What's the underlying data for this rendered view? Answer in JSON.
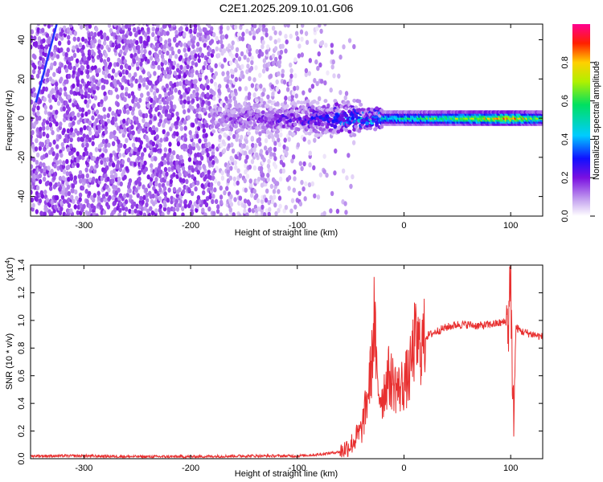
{
  "title": "C2E1.2025.209.10.01.G06",
  "chart_data": [
    {
      "type": "heatmap",
      "xlabel": "Height of straight line (km)",
      "ylabel": "Frequency (Hz)",
      "xlim": [
        -350,
        130
      ],
      "ylim": [
        -50,
        48
      ],
      "x_ticks": [
        -300,
        -200,
        -100,
        0,
        100
      ],
      "y_ticks": [
        -40,
        -20,
        0,
        20,
        40
      ],
      "colorbar": {
        "label": "Normalized spectral amplitude",
        "range": [
          0,
          1
        ],
        "ticks": [
          0.0,
          0.2,
          0.4,
          0.6,
          0.8
        ],
        "colormap": "rainbow (purple-blue-cyan-green-yellow-red-magenta)"
      },
      "features": [
        {
          "name": "noise",
          "x_range": [
            -350,
            -40
          ],
          "y_range": [
            -50,
            48
          ],
          "amplitude": [
            0.02,
            0.15
          ]
        },
        {
          "name": "signal-ridge",
          "x_range": [
            -180,
            130
          ],
          "frequency": 0,
          "amplitude_at_x": [
            [
              -180,
              0.15
            ],
            [
              -100,
              0.25
            ],
            [
              -50,
              0.4
            ],
            [
              0,
              0.55
            ],
            [
              50,
              0.7
            ],
            [
              100,
              0.9
            ],
            [
              130,
              0.6
            ]
          ]
        },
        {
          "name": "aliased-line",
          "x_range": [
            -345,
            -330
          ],
          "frequency_range": [
            8,
            48
          ]
        }
      ]
    },
    {
      "type": "line",
      "xlabel": "Height of straight line (km)",
      "ylabel": "SNR (10 * v/v)",
      "yscale_label": "(x10^4)",
      "xlim": [
        -350,
        130
      ],
      "ylim": [
        0,
        1.4
      ],
      "x_ticks": [
        -300,
        -200,
        -100,
        0,
        100
      ],
      "y_ticks": [
        0.0,
        0.2,
        0.4,
        0.6,
        0.8,
        1.0,
        1.2,
        1.4
      ],
      "color": "#e83030",
      "series": [
        {
          "x": [
            -350,
            -300,
            -250,
            -200,
            -150,
            -100,
            -80,
            -60,
            -50,
            -40,
            -35,
            -30,
            -28,
            -25,
            -20,
            -15,
            -10,
            -5,
            0,
            5,
            10,
            15,
            20,
            30,
            40,
            50,
            60,
            70,
            80,
            90,
            95,
            98,
            100,
            102,
            105,
            110,
            120,
            130
          ],
          "values": [
            0.02,
            0.02,
            0.015,
            0.015,
            0.02,
            0.02,
            0.03,
            0.05,
            0.1,
            0.2,
            0.4,
            0.7,
            1.05,
            0.5,
            0.45,
            0.6,
            0.55,
            0.5,
            0.55,
            0.6,
            0.85,
            0.8,
            0.88,
            0.92,
            0.95,
            0.97,
            0.97,
            0.96,
            0.97,
            0.98,
            0.99,
            1.0,
            1.4,
            0.2,
            0.95,
            0.92,
            0.9,
            0.88
          ]
        }
      ]
    }
  ]
}
